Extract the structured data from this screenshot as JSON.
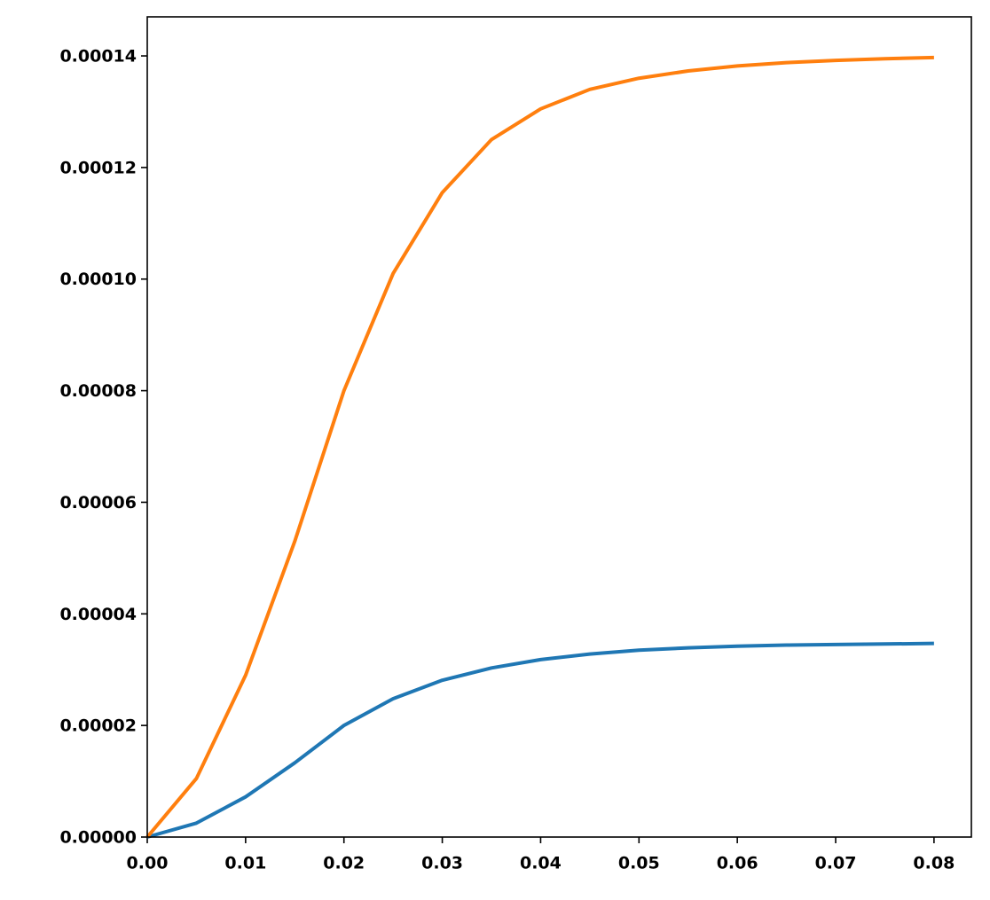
{
  "chart_data": {
    "type": "line",
    "x": [
      0,
      0.005,
      0.01,
      0.015,
      0.02,
      0.025,
      0.03,
      0.035,
      0.04,
      0.045,
      0.05,
      0.055,
      0.06,
      0.065,
      0.07,
      0.075,
      0.08
    ],
    "series": [
      {
        "color": "#1f77b4",
        "values": [
          0,
          2.5e-06,
          7.2e-06,
          1.33e-05,
          2e-05,
          2.48e-05,
          2.81e-05,
          3.03e-05,
          3.18e-05,
          3.28e-05,
          3.35e-05,
          3.39e-05,
          3.42e-05,
          3.44e-05,
          3.45e-05,
          3.46e-05,
          3.47e-05
        ]
      },
      {
        "color": "#ff7f0e",
        "values": [
          0,
          1.05e-05,
          2.9e-05,
          5.3e-05,
          8e-05,
          0.000101,
          0.0001155,
          0.000125,
          0.0001305,
          0.000134,
          0.000136,
          0.0001373,
          0.0001382,
          0.0001388,
          0.0001392,
          0.0001395,
          0.0001397
        ]
      }
    ],
    "xlim": [
      0,
      0.0838
    ],
    "ylim": [
      0,
      0.000147
    ],
    "xticks": [
      {
        "value": 0,
        "label": "0.00"
      },
      0.01,
      0.02,
      0.03,
      0.04,
      0.05,
      0.06,
      0.07,
      0.08
    ],
    "yticks": [
      {
        "value": 0,
        "label": "0.00000"
      },
      {
        "value": 2e-05,
        "label": "0.00002"
      },
      {
        "value": 4e-05,
        "label": "0.00004"
      },
      {
        "value": 6e-05,
        "label": "0.00006"
      },
      {
        "value": 8e-05,
        "label": "0.00008"
      },
      {
        "value": 0.0001,
        "label": "0.00010"
      },
      {
        "value": 0.00012,
        "label": "0.00012"
      },
      {
        "value": 0.00014,
        "label": "0.00014"
      }
    ],
    "grid": false
  }
}
